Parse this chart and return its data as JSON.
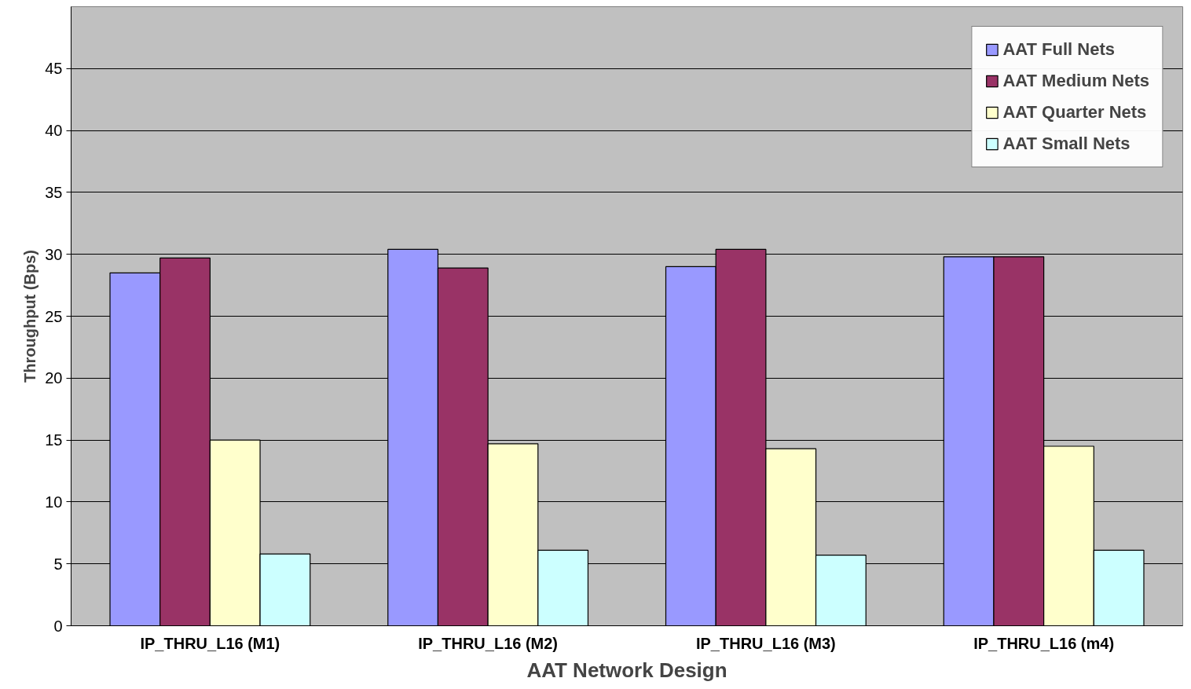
{
  "chart_data": {
    "type": "bar",
    "xlabel": "AAT Network Design",
    "ylabel": "Throughput (Bps)",
    "categories": [
      "IP_THRU_L16 (M1)",
      "IP_THRU_L16 (M2)",
      "IP_THRU_L16 (M3)",
      "IP_THRU_L16 (m4)"
    ],
    "series": [
      {
        "name": "AAT Full Nets",
        "color": "#9999ff",
        "values": [
          28.5,
          30.4,
          29.0,
          29.8
        ]
      },
      {
        "name": "AAT Medium Nets",
        "color": "#993366",
        "values": [
          29.7,
          28.9,
          30.4,
          29.8
        ]
      },
      {
        "name": "AAT Quarter Nets",
        "color": "#ffffcc",
        "values": [
          15.0,
          14.7,
          14.3,
          14.5
        ]
      },
      {
        "name": "AAT Small Nets",
        "color": "#ccffff",
        "values": [
          5.8,
          6.1,
          5.7,
          6.1
        ]
      }
    ],
    "ylim": [
      0,
      50
    ],
    "yticks": [
      0,
      5,
      10,
      15,
      20,
      25,
      30,
      35,
      40,
      45
    ],
    "grid": "y",
    "legend": "top right"
  }
}
